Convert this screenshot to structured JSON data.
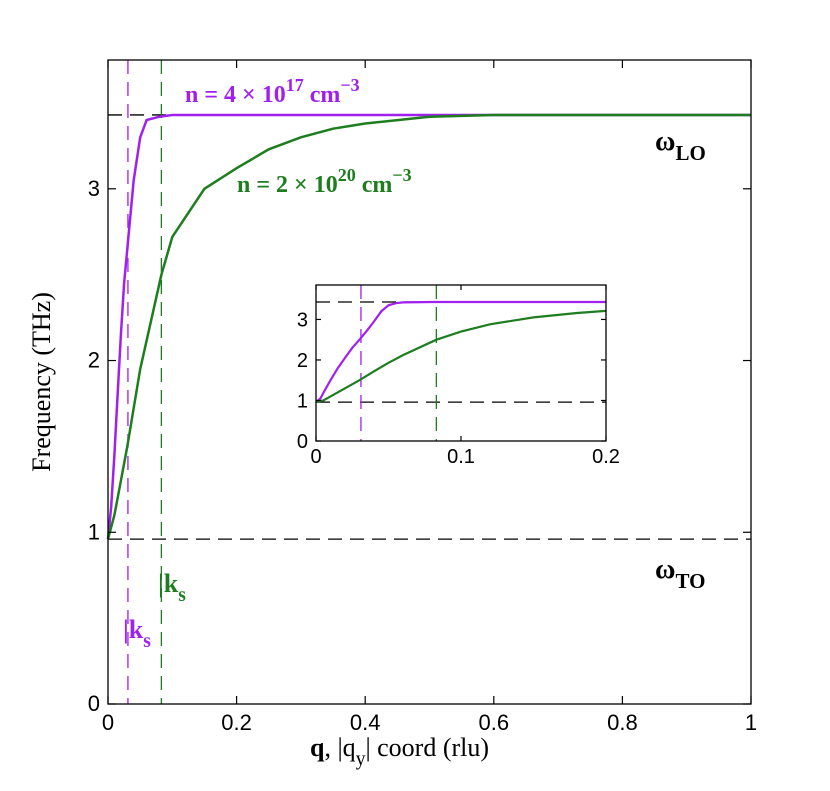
{
  "chart_data": [
    {
      "type": "line",
      "ylabel": "Frequency (THz)",
      "xlabel_parts": [
        "q",
        ", |q",
        "y",
        "| coord (rlu)"
      ],
      "xlim": [
        0,
        1
      ],
      "ylim": [
        0,
        3.75
      ],
      "xticks": [
        0,
        0.2,
        0.4,
        0.6,
        0.8,
        1
      ],
      "yticks": [
        0,
        1,
        2,
        3
      ],
      "series": [
        {
          "color": "#a020f0",
          "x": [
            0,
            0.005,
            0.01,
            0.015,
            0.02,
            0.025,
            0.03,
            0.04,
            0.05,
            0.06,
            0.08,
            0.1,
            0.2,
            0.4,
            0.6,
            0.8,
            1
          ],
          "values": [
            0.96,
            1.15,
            1.45,
            1.8,
            2.15,
            2.45,
            2.65,
            3.05,
            3.3,
            3.4,
            3.42,
            3.43,
            3.43,
            3.43,
            3.43,
            3.43,
            3.43
          ]
        },
        {
          "color": "#1e7d1e",
          "x": [
            0,
            0.01,
            0.02,
            0.03,
            0.05,
            0.083,
            0.1,
            0.15,
            0.2,
            0.25,
            0.3,
            0.35,
            0.4,
            0.5,
            0.6,
            0.8,
            1
          ],
          "values": [
            0.96,
            1.1,
            1.3,
            1.5,
            1.95,
            2.5,
            2.72,
            3.0,
            3.12,
            3.23,
            3.3,
            3.35,
            3.38,
            3.42,
            3.43,
            3.43,
            3.43
          ]
        }
      ],
      "hlines": [
        {
          "value": 3.43,
          "color": "#000000"
        },
        {
          "value": 0.96,
          "color": "#000000"
        }
      ],
      "vlines": [
        {
          "value": 0.031,
          "color": "#a020f0"
        },
        {
          "value": 0.083,
          "color": "#1e7d1e"
        }
      ],
      "annotations": [
        {
          "parts": [
            "n = 4 × 10",
            "17",
            " cm",
            "−3"
          ],
          "color": "#a020f0"
        },
        {
          "parts": [
            "n = 2 × 10",
            "20",
            " cm",
            "−3"
          ],
          "color": "#1e7d1e"
        },
        {
          "parts": [
            "ω",
            "LO"
          ],
          "color": "#000000"
        },
        {
          "parts": [
            "ω",
            "TO"
          ],
          "color": "#000000"
        },
        {
          "parts": [
            "|k",
            "s"
          ],
          "color": "#a020f0"
        },
        {
          "parts": [
            "|k",
            "s"
          ],
          "color": "#1e7d1e"
        }
      ]
    },
    {
      "type": "line",
      "xlim": [
        0,
        0.2
      ],
      "ylim": [
        0,
        3.85
      ],
      "xticks": [
        0,
        0.1,
        0.2
      ],
      "yticks": [
        0,
        1,
        2,
        3
      ],
      "series": [
        {
          "color": "#a020f0",
          "x": [
            0,
            0.003,
            0.006,
            0.01,
            0.015,
            0.02,
            0.025,
            0.03,
            0.035,
            0.04,
            0.045,
            0.05,
            0.055,
            0.06,
            0.08,
            0.1,
            0.15,
            0.2
          ],
          "values": [
            0.96,
            1.05,
            1.25,
            1.5,
            1.8,
            2.05,
            2.3,
            2.5,
            2.72,
            2.95,
            3.2,
            3.35,
            3.4,
            3.42,
            3.43,
            3.43,
            3.43,
            3.43
          ]
        },
        {
          "color": "#1e7d1e",
          "x": [
            0,
            0.005,
            0.01,
            0.02,
            0.03,
            0.04,
            0.05,
            0.06,
            0.083,
            0.1,
            0.12,
            0.15,
            0.18,
            0.2
          ],
          "values": [
            0.96,
            1.0,
            1.1,
            1.3,
            1.5,
            1.72,
            1.93,
            2.12,
            2.5,
            2.7,
            2.88,
            3.05,
            3.16,
            3.21
          ]
        }
      ],
      "hlines": [
        {
          "value": 3.43,
          "color": "#000000"
        },
        {
          "value": 0.96,
          "color": "#000000"
        }
      ],
      "vlines": [
        {
          "value": 0.031,
          "color": "#a020f0"
        },
        {
          "value": 0.083,
          "color": "#1e7d1e"
        }
      ]
    }
  ]
}
